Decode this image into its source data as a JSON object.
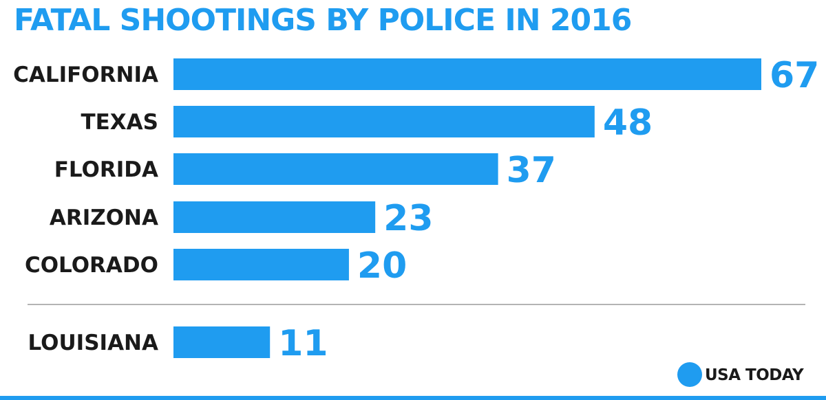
{
  "colors": {
    "accent": "#1f9cf0",
    "label": "#1a1a1a",
    "divider": "#b3b3b3",
    "background": "#ffffff"
  },
  "brand": {
    "name": "USA TODAY",
    "icon": "usa-today-dot-icon"
  },
  "chart_data": {
    "type": "bar",
    "orientation": "horizontal",
    "title": "FATAL SHOOTINGS BY POLICE IN 2016",
    "xlabel": "",
    "ylabel": "",
    "xlim": [
      0,
      67
    ],
    "grid": false,
    "legend": "none",
    "categories": [
      "CALIFORNIA",
      "TEXAS",
      "FLORIDA",
      "ARIZONA",
      "COLORADO",
      "LOUISIANA"
    ],
    "values": [
      67,
      48,
      37,
      23,
      20,
      11
    ],
    "separated_category": "LOUISIANA",
    "data_labels": [
      "67",
      "48",
      "37",
      "23",
      "20",
      "11"
    ]
  }
}
